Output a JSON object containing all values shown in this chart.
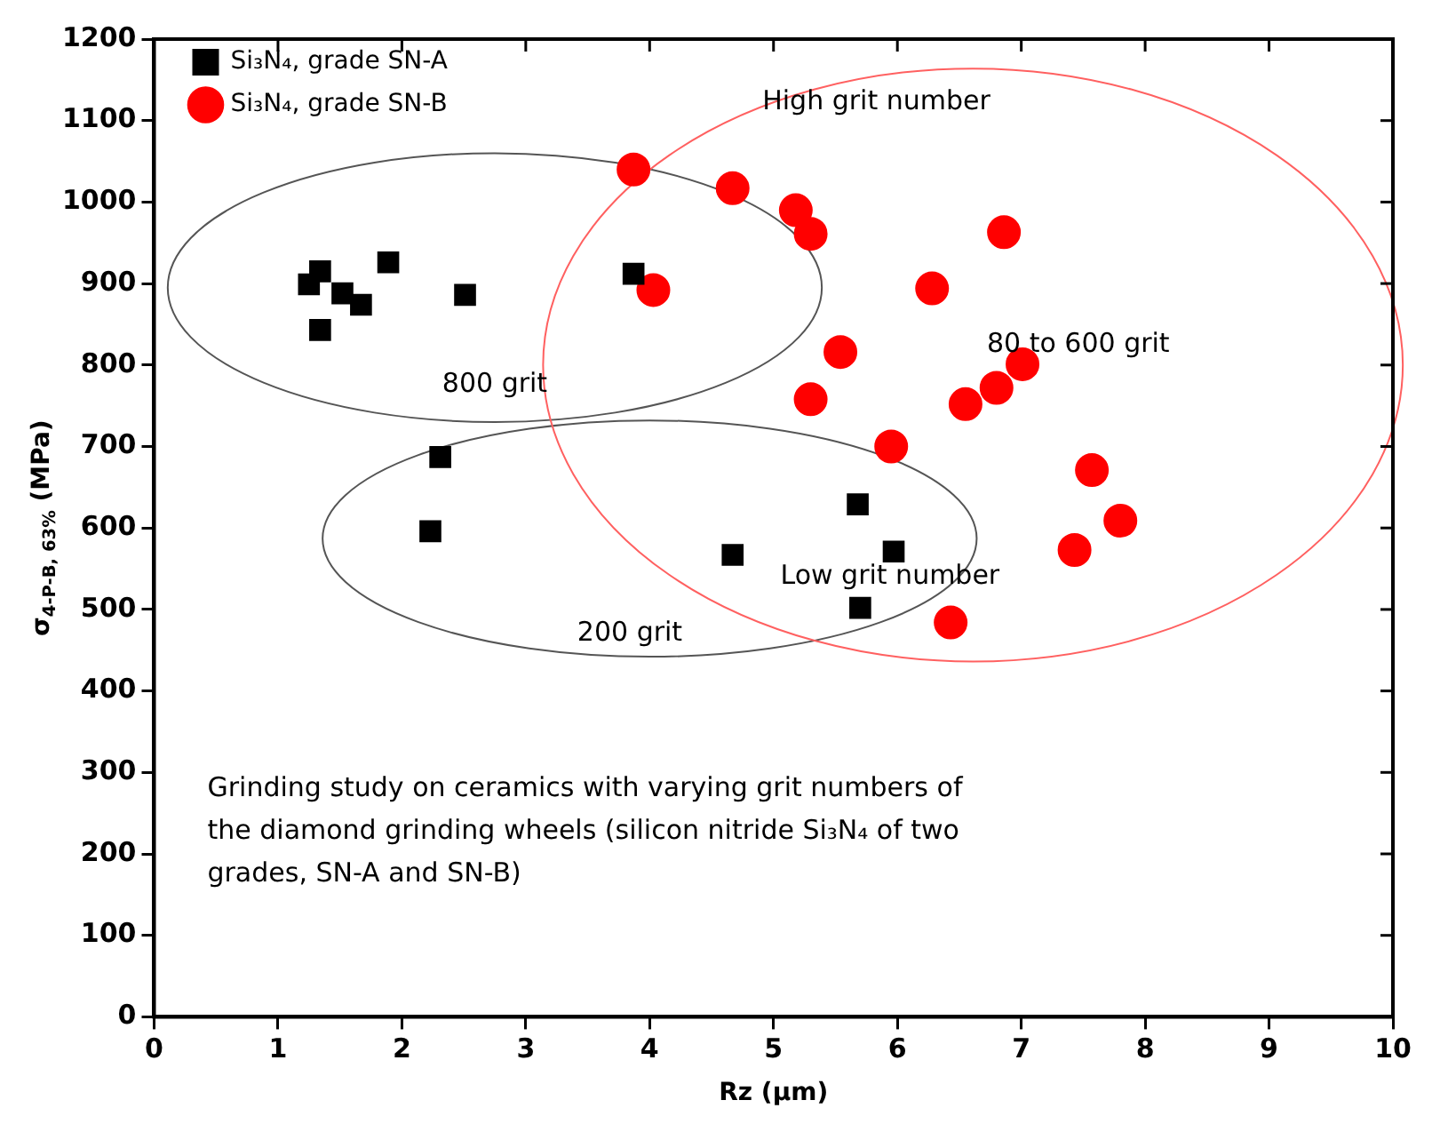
{
  "chart_data": {
    "type": "scatter",
    "xlabel": "Rz (µm)",
    "ylabel": "σ$_{4-P-B, 63%}$ (MPa)",
    "xlim": [
      0,
      10
    ],
    "xticks": [
      0,
      1,
      2,
      3,
      4,
      5,
      6,
      7,
      8,
      9,
      10
    ],
    "ylim": [
      0,
      1200
    ],
    "yticks": [
      0,
      100,
      200,
      300,
      400,
      500,
      600,
      700,
      800,
      900,
      1000,
      1100,
      1200
    ],
    "grid": false,
    "legend": "top left",
    "series": [
      {
        "name": "Si₃N₄, grade SN-A",
        "color": "#000000",
        "marker": "square",
        "x": [
          1.25,
          1.34,
          1.52,
          1.67,
          1.34,
          1.89,
          2.51,
          3.87,
          2.31,
          2.23,
          5.68,
          4.67,
          5.97,
          5.7
        ],
        "values": [
          899,
          915,
          888,
          874,
          843,
          926,
          886,
          912,
          687,
          596,
          629,
          567,
          571,
          502
        ]
      },
      {
        "name": "Si₃N₄, grade SN-B",
        "color": "#ff0000",
        "marker": "circle",
        "x": [
          3.87,
          4.67,
          5.18,
          5.3,
          6.86,
          6.28,
          4.03,
          5.54,
          5.3,
          6.55,
          6.8,
          7.01,
          5.95,
          7.57,
          7.8,
          7.43,
          6.43
        ],
        "values": [
          1040,
          1017,
          990,
          961,
          963,
          894,
          892,
          816,
          758,
          752,
          772,
          801,
          700,
          671,
          609,
          573,
          484
        ]
      }
    ],
    "annotations": [
      "High grit number",
      "80 to 600 grit",
      "800 grit",
      "Low grit number",
      "200 grit",
      "Grinding study on ceramics with varying grit numbers of the diamond grinding wheels (silicon nitride Si₃N₄ of two grades, SN-A and SN-B)"
    ]
  }
}
